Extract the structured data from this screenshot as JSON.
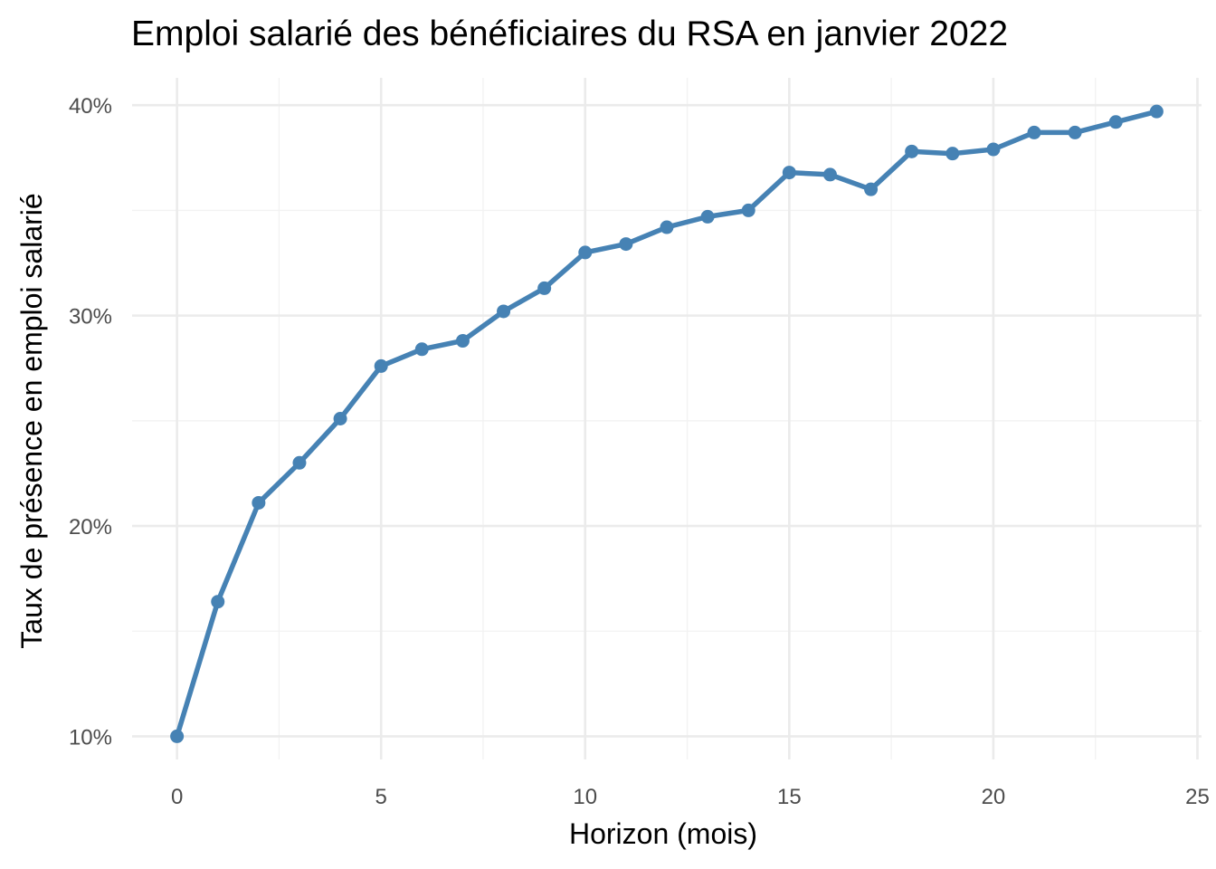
{
  "chart_data": {
    "type": "line",
    "title": "Emploi salarié des bénéficiaires du RSA en janvier 2022",
    "xlabel": "Horizon (mois)",
    "ylabel": "Taux de présence en emploi salarié",
    "xlim": [
      -1.1,
      25.1
    ],
    "ylim": [
      8.9,
      41.3
    ],
    "x_ticks": [
      0,
      5,
      10,
      15,
      20,
      25
    ],
    "x_tick_labels": [
      "0",
      "5",
      "10",
      "15",
      "20",
      "25"
    ],
    "y_ticks": [
      10,
      20,
      30,
      40
    ],
    "y_tick_labels": [
      "10%",
      "20%",
      "30%",
      "40%"
    ],
    "grid": true,
    "legend": "none",
    "line_color": "#4682b4",
    "series": [
      {
        "x": [
          0,
          1,
          2,
          3,
          4,
          5,
          6,
          7,
          8,
          9,
          10,
          11,
          12,
          13,
          14,
          15,
          16,
          17,
          18,
          19,
          20,
          21,
          22,
          23,
          24
        ],
        "values": [
          10.0,
          16.4,
          21.1,
          23.0,
          25.1,
          27.6,
          28.4,
          28.8,
          30.2,
          31.3,
          33.0,
          33.4,
          34.2,
          34.7,
          35.0,
          36.8,
          36.7,
          36.0,
          37.8,
          37.7,
          37.9,
          38.7,
          38.7,
          39.2,
          39.7
        ]
      }
    ]
  }
}
